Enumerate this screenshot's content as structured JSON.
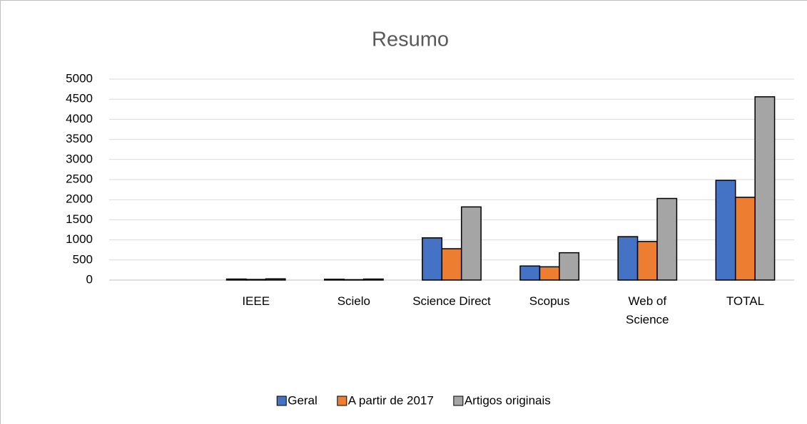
{
  "chart_data": {
    "type": "bar",
    "title": "Resumo",
    "categories": [
      null,
      "IEEE",
      "Scielo",
      "Science Direct",
      "Scopus",
      "Web of Science",
      "TOTAL"
    ],
    "series": [
      {
        "name": "Geral",
        "color": "#4472c4",
        "values": [
          null,
          25,
          20,
          1050,
          350,
          1080,
          2480
        ]
      },
      {
        "name": "A partir de 2017",
        "color": "#ed7d31",
        "values": [
          null,
          15,
          10,
          780,
          330,
          960,
          2060
        ]
      },
      {
        "name": "Artigos originais",
        "color": "#a5a5a5",
        "values": [
          null,
          30,
          25,
          1820,
          680,
          2030,
          4560
        ]
      }
    ],
    "ylim": [
      0,
      5000
    ],
    "yticks": [
      0,
      500,
      1000,
      1500,
      2000,
      2500,
      3000,
      3500,
      4000,
      4500,
      5000
    ],
    "grid": true,
    "legend": "bottom"
  }
}
